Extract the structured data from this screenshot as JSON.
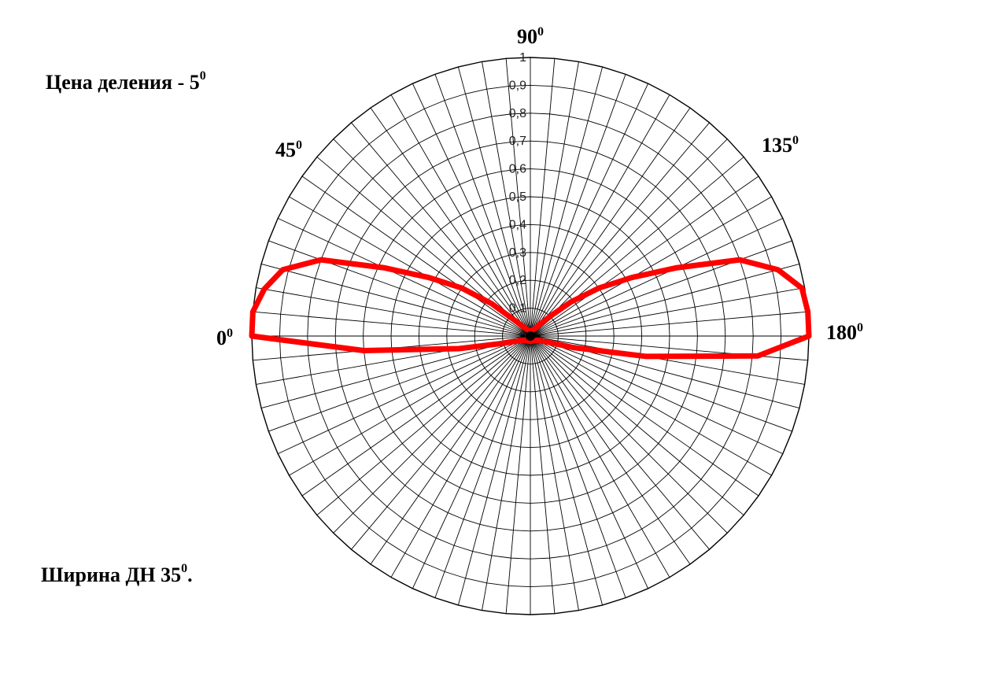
{
  "notes": {
    "division_label": "Цена деления - 5",
    "division_sup": "0",
    "beamwidth_label": "Ширина ДН 35",
    "beamwidth_sup": "0",
    "beamwidth_suffix": "."
  },
  "chart_data": {
    "type": "polar-line",
    "title": "",
    "angular_step_deg": 5,
    "radial_range": [
      0,
      1
    ],
    "radial_ticks": [
      "0",
      "0,1",
      "0,2",
      "0,3",
      "0,4",
      "0,5",
      "0,6",
      "0,7",
      "0,8",
      "0,9",
      "1"
    ],
    "angle_labels": [
      {
        "value": 0,
        "text": "0",
        "sup": "0"
      },
      {
        "value": 45,
        "text": "45",
        "sup": "0"
      },
      {
        "value": 90,
        "text": "90",
        "sup": "0"
      },
      {
        "value": 135,
        "text": "135",
        "sup": "0"
      },
      {
        "value": 180,
        "text": "180",
        "sup": "0"
      }
    ],
    "grid": true,
    "series": [
      {
        "color": "#ff0000",
        "points": [
          {
            "angle": 0,
            "r": 1.0
          },
          {
            "angle": 5,
            "r": 1.0
          },
          {
            "angle": 10,
            "r": 0.97
          },
          {
            "angle": 15,
            "r": 0.92
          },
          {
            "angle": 20,
            "r": 0.8
          },
          {
            "angle": 25,
            "r": 0.58
          },
          {
            "angle": 30,
            "r": 0.42
          },
          {
            "angle": 35,
            "r": 0.3
          },
          {
            "angle": 40,
            "r": 0.18
          },
          {
            "angle": 45,
            "r": 0.08
          },
          {
            "angle": 50,
            "r": 0.05
          },
          {
            "angle": 60,
            "r": 0.03
          },
          {
            "angle": 75,
            "r": 0.02
          },
          {
            "angle": 90,
            "r": 0.02
          },
          {
            "angle": 105,
            "r": 0.02
          },
          {
            "angle": 120,
            "r": 0.03
          },
          {
            "angle": 130,
            "r": 0.06
          },
          {
            "angle": 135,
            "r": 0.1
          },
          {
            "angle": 140,
            "r": 0.19
          },
          {
            "angle": 145,
            "r": 0.3
          },
          {
            "angle": 150,
            "r": 0.42
          },
          {
            "angle": 155,
            "r": 0.58
          },
          {
            "angle": 160,
            "r": 0.8
          },
          {
            "angle": 165,
            "r": 0.92
          },
          {
            "angle": 170,
            "r": 0.99
          },
          {
            "angle": 175,
            "r": 1.0
          },
          {
            "angle": 180,
            "r": 1.0
          },
          {
            "angle": 185,
            "r": 0.82
          },
          {
            "angle": 190,
            "r": 0.42
          },
          {
            "angle": 195,
            "r": 0.16
          },
          {
            "angle": 200,
            "r": 0.06
          },
          {
            "angle": 210,
            "r": 0.03
          },
          {
            "angle": 240,
            "r": 0.02
          },
          {
            "angle": 270,
            "r": 0.02
          },
          {
            "angle": 300,
            "r": 0.02
          },
          {
            "angle": 330,
            "r": 0.03
          },
          {
            "angle": 345,
            "r": 0.1
          },
          {
            "angle": 350,
            "r": 0.26
          },
          {
            "angle": 355,
            "r": 0.6
          },
          {
            "angle": 360,
            "r": 1.0
          }
        ]
      }
    ]
  }
}
